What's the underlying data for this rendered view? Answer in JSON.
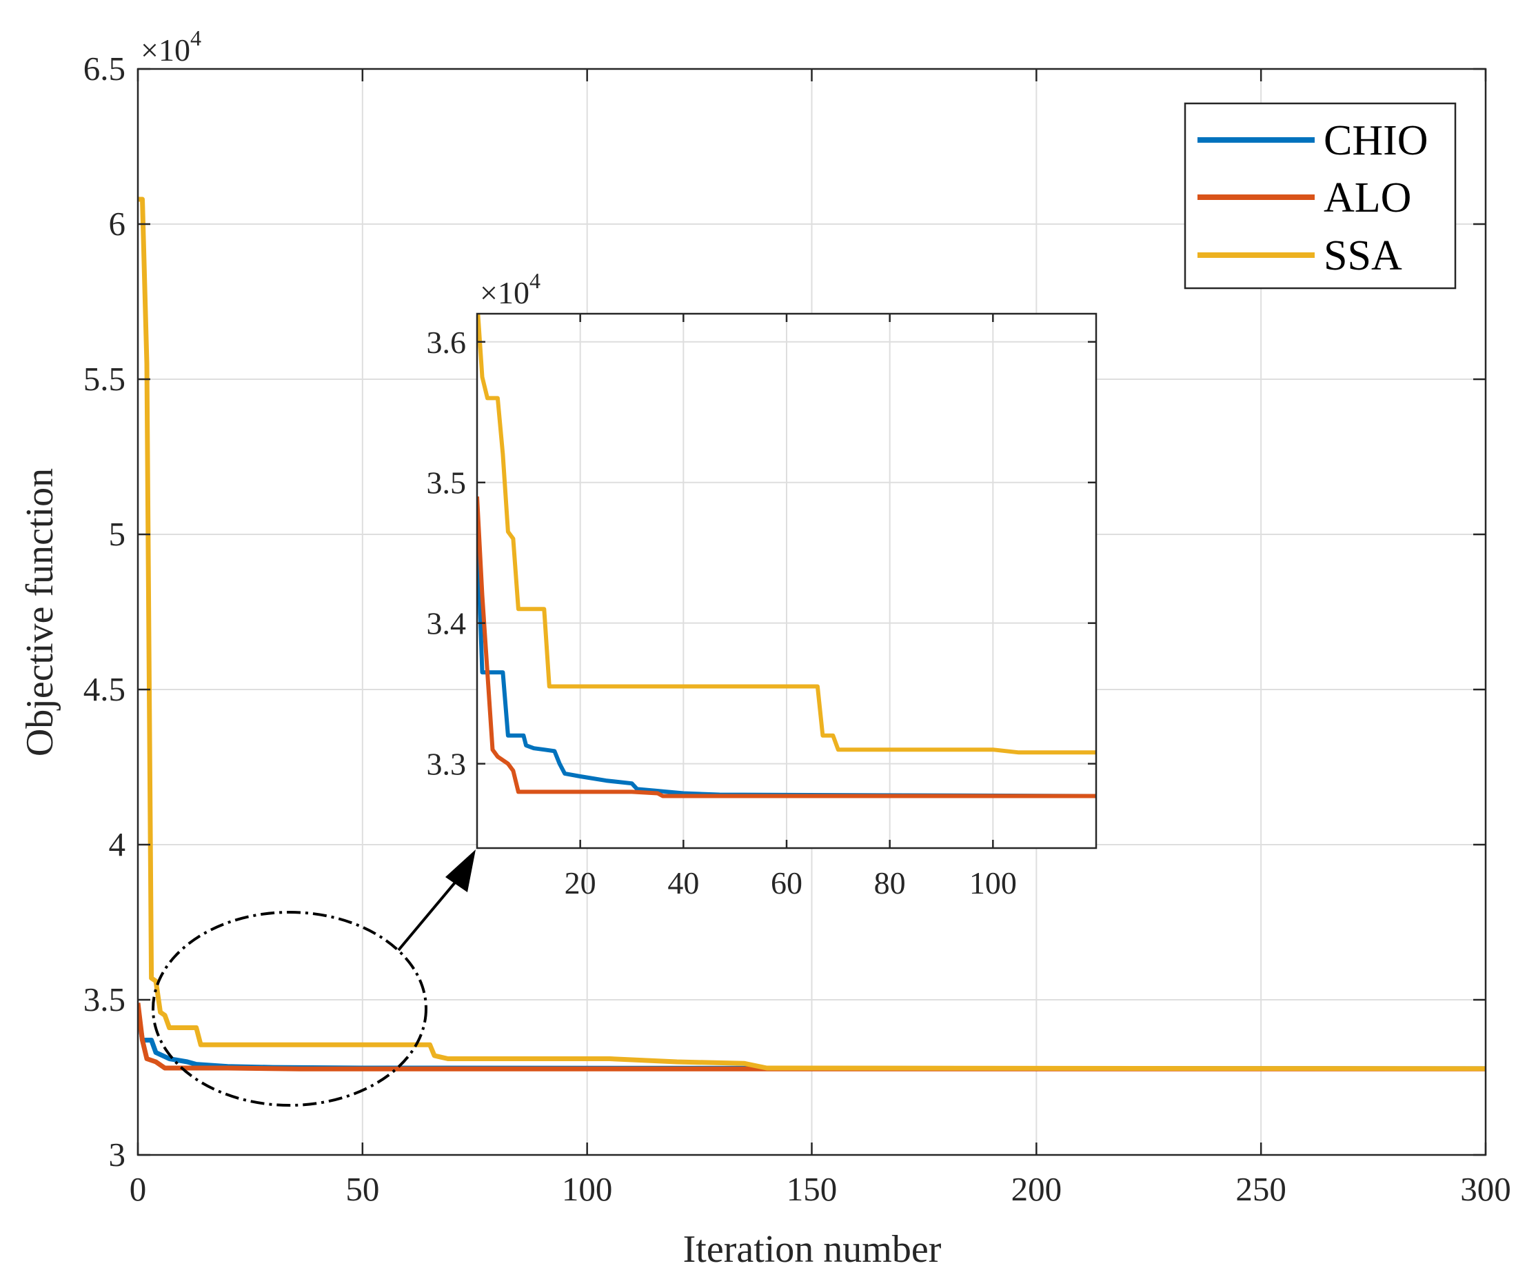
{
  "colors": {
    "CHIO": "#0072BD",
    "ALO": "#D95319",
    "SSA": "#EDB120",
    "grid": "#dedede",
    "axis": "#262626"
  },
  "chart_data": [
    {
      "type": "line",
      "xlabel": "Iteration number",
      "ylabel": "Objective function",
      "y_multiplier": {
        "base": "×10",
        "exp": "4"
      },
      "xlim": [
        0,
        300
      ],
      "ylim": [
        3,
        6.5
      ],
      "xticks": [
        0,
        50,
        100,
        150,
        200,
        250,
        300
      ],
      "xtick_labels": [
        "0",
        "50",
        "100",
        "150",
        "200",
        "250",
        "300"
      ],
      "yticks": [
        3,
        3.5,
        4,
        4.5,
        5,
        5.5,
        6,
        6.5
      ],
      "ytick_labels": [
        "3",
        "3.5",
        "4",
        "4.5",
        "5",
        "5.5",
        "6",
        "6.5"
      ],
      "grid": true,
      "legend": "top-right",
      "series": [
        {
          "name": "CHIO",
          "color_key": "CHIO",
          "points": [
            [
              0,
              3.47
            ],
            [
              1,
              3.37
            ],
            [
              3,
              3.37
            ],
            [
              4,
              3.33
            ],
            [
              7,
              3.31
            ],
            [
              11,
              3.3
            ],
            [
              13,
              3.292
            ],
            [
              20,
              3.285
            ],
            [
              30,
              3.282
            ],
            [
              50,
              3.28
            ],
            [
              300,
              3.278
            ]
          ]
        },
        {
          "name": "ALO",
          "color_key": "ALO",
          "points": [
            [
              0,
              3.49
            ],
            [
              1,
              3.37
            ],
            [
              2,
              3.31
            ],
            [
              4,
              3.3
            ],
            [
              6,
              3.28
            ],
            [
              20,
              3.28
            ],
            [
              36,
              3.277
            ],
            [
              300,
              3.277
            ]
          ]
        },
        {
          "name": "SSA",
          "color_key": "SSA",
          "points": [
            [
              0,
              6.08
            ],
            [
              1,
              6.08
            ],
            [
              2,
              5.55
            ],
            [
              3,
              3.57
            ],
            [
              4,
              3.56
            ],
            [
              5,
              3.46
            ],
            [
              6,
              3.45
            ],
            [
              7,
              3.41
            ],
            [
              13,
              3.41
            ],
            [
              14,
              3.355
            ],
            [
              65,
              3.355
            ],
            [
              66,
              3.32
            ],
            [
              69,
              3.31
            ],
            [
              105,
              3.31
            ],
            [
              120,
              3.3
            ],
            [
              135,
              3.295
            ],
            [
              140,
              3.28
            ],
            [
              300,
              3.278
            ]
          ]
        }
      ]
    },
    {
      "type": "line",
      "role": "inset",
      "y_multiplier": {
        "base": "×10",
        "exp": "4"
      },
      "xlim": [
        0,
        120
      ],
      "ylim": [
        3.24,
        3.62
      ],
      "xticks": [
        20,
        40,
        60,
        80,
        100
      ],
      "xtick_labels": [
        "20",
        "40",
        "60",
        "80",
        "100"
      ],
      "yticks": [
        3.3,
        3.4,
        3.5,
        3.6
      ],
      "ytick_labels": [
        "3.3",
        "3.4",
        "3.5",
        "3.6"
      ],
      "grid": true,
      "series": [
        {
          "color_key": "CHIO",
          "points": [
            [
              0,
              3.47
            ],
            [
              1,
              3.365
            ],
            [
              5,
              3.365
            ],
            [
              6,
              3.32
            ],
            [
              9,
              3.32
            ],
            [
              9.5,
              3.313
            ],
            [
              11,
              3.311
            ],
            [
              13,
              3.31
            ],
            [
              15,
              3.309
            ],
            [
              16,
              3.3
            ],
            [
              17,
              3.293
            ],
            [
              20,
              3.291
            ],
            [
              25,
              3.288
            ],
            [
              30,
              3.286
            ],
            [
              31,
              3.282
            ],
            [
              40,
              3.279
            ],
            [
              47,
              3.278
            ],
            [
              120,
              3.277
            ]
          ]
        },
        {
          "color_key": "ALO",
          "points": [
            [
              0,
              3.49
            ],
            [
              1,
              3.42
            ],
            [
              2,
              3.365
            ],
            [
              3,
              3.31
            ],
            [
              4,
              3.305
            ],
            [
              6,
              3.3
            ],
            [
              7,
              3.295
            ],
            [
              8,
              3.28
            ],
            [
              30,
              3.28
            ],
            [
              35,
              3.279
            ],
            [
              36,
              3.277
            ],
            [
              120,
              3.277
            ]
          ]
        },
        {
          "color_key": "SSA",
          "points": [
            [
              0,
              3.63
            ],
            [
              1,
              3.575
            ],
            [
              2,
              3.56
            ],
            [
              4,
              3.56
            ],
            [
              5,
              3.52
            ],
            [
              6,
              3.465
            ],
            [
              7,
              3.46
            ],
            [
              8,
              3.41
            ],
            [
              13,
              3.41
            ],
            [
              14,
              3.355
            ],
            [
              66,
              3.355
            ],
            [
              67,
              3.32
            ],
            [
              69,
              3.32
            ],
            [
              70,
              3.31
            ],
            [
              100,
              3.31
            ],
            [
              105,
              3.308
            ],
            [
              120,
              3.308
            ]
          ]
        }
      ]
    }
  ]
}
